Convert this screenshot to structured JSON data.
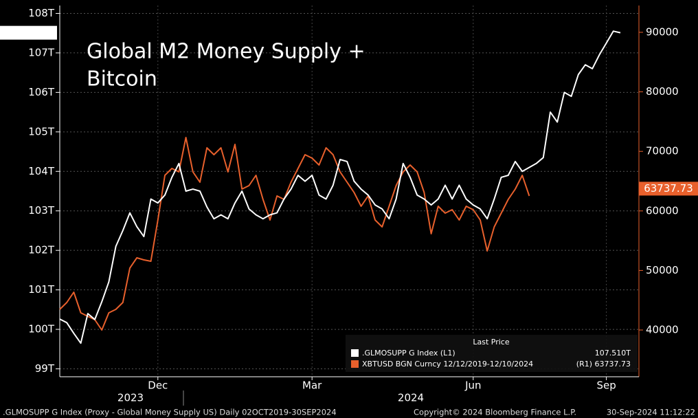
{
  "chart_data": {
    "type": "line",
    "title_parts": [
      {
        "text": "Global M2 Money Supply +",
        "color": "#ffffff"
      },
      {
        "text": "Bitcoin",
        "color": "#e8602c"
      }
    ],
    "categories": [
      null,
      null,
      null,
      null,
      null,
      null,
      null,
      null,
      null,
      null,
      null,
      null,
      null,
      null,
      "Dec",
      null,
      null,
      null,
      null,
      null,
      null,
      null,
      null,
      null,
      null,
      null,
      null,
      null,
      null,
      null,
      null,
      null,
      null,
      null,
      null,
      null,
      "Mar",
      null,
      null,
      null,
      null,
      null,
      null,
      null,
      null,
      null,
      null,
      null,
      null,
      null,
      null,
      null,
      null,
      null,
      null,
      null,
      null,
      null,
      null,
      "Jun",
      null,
      null,
      null,
      null,
      null,
      null,
      null,
      null,
      null,
      null,
      null,
      null,
      null,
      null,
      null,
      null,
      null,
      null,
      "Sep",
      null,
      null
    ],
    "x_group_labels": [
      "2023",
      "2024"
    ],
    "series": [
      {
        "name": ".GLMOSUPP G Index  (L1)",
        "legend_value": "107.510T",
        "color": "#ffffff",
        "axis": "y",
        "values": [
          100.26,
          100.17,
          99.9,
          99.65,
          100.4,
          100.25,
          100.7,
          101.2,
          102.1,
          102.5,
          102.95,
          102.6,
          102.35,
          103.3,
          103.2,
          103.4,
          103.85,
          104.2,
          103.5,
          103.55,
          103.5,
          103.1,
          102.8,
          102.9,
          102.8,
          103.2,
          103.5,
          103.05,
          102.9,
          102.8,
          102.9,
          102.95,
          103.3,
          103.55,
          103.9,
          103.75,
          103.9,
          103.4,
          103.3,
          103.65,
          104.3,
          104.25,
          103.75,
          103.55,
          103.4,
          103.15,
          103.05,
          102.8,
          103.3,
          104.2,
          103.85,
          103.4,
          103.3,
          103.15,
          103.3,
          103.65,
          103.3,
          103.65,
          103.3,
          103.15,
          103.05,
          102.8,
          103.3,
          103.85,
          103.9,
          104.25,
          104.0,
          104.1,
          104.2,
          104.35,
          105.5,
          105.25,
          106.0,
          105.9,
          106.45,
          106.7,
          106.6,
          106.95,
          107.25,
          107.55,
          107.51
        ]
      },
      {
        "name": "XBTUSD BGN Curncy 12/12/2019-12/10/2024",
        "legend_value": "(R1) 63737.73",
        "color": "#e8602c",
        "axis": "y2",
        "values": [
          43460,
          44620,
          46350,
          42890,
          42300,
          41730,
          40000,
          42890,
          43460,
          44620,
          50400,
          52120,
          51780,
          51550,
          58480,
          65980,
          67140,
          66560,
          72330,
          66560,
          64830,
          70600,
          69450,
          70600,
          66560,
          71180,
          63670,
          64250,
          65980,
          61940,
          58480,
          62520,
          61940,
          64830,
          67140,
          69450,
          68870,
          67710,
          70600,
          69450,
          66560,
          64830,
          63090,
          60790,
          62520,
          58480,
          57320,
          60790,
          64250,
          66560,
          67710,
          66560,
          63090,
          56170,
          60790,
          59630,
          60210,
          58480,
          60790,
          60210,
          58480,
          53280,
          57320,
          59630,
          61940,
          63670,
          65980,
          62520,
          null,
          null,
          null,
          null,
          null,
          null,
          null,
          null,
          null,
          null,
          null,
          null,
          null
        ]
      }
    ],
    "legend_title": "Last Price",
    "last_value_tags": [
      {
        "value": 107.51,
        "label": "107.510T",
        "axis": "y",
        "color": "#ffffff"
      },
      {
        "value": 63737.73,
        "label": "63737.73",
        "axis": "y2",
        "color": "#e8602c"
      }
    ],
    "ylim": [
      98.8,
      108.2
    ],
    "yticks": [
      {
        "value": 99,
        "label": "99T"
      },
      {
        "value": 100,
        "label": "100T"
      },
      {
        "value": 101,
        "label": "101T"
      },
      {
        "value": 102,
        "label": "102T"
      },
      {
        "value": 103,
        "label": "103T"
      },
      {
        "value": 104,
        "label": "104T"
      },
      {
        "value": 105,
        "label": "105T"
      },
      {
        "value": 106,
        "label": "106T"
      },
      {
        "value": 107,
        "label": "107T"
      },
      {
        "value": 108,
        "label": "108T"
      }
    ],
    "y2lim": [
      32150,
      94500
    ],
    "y2ticks": [
      40000,
      50000,
      60000,
      70000,
      80000,
      90000
    ],
    "grid": true,
    "footer": [
      ".GLMOSUPP G Index (Proxy - Global Money Supply US)  Daily 02OCT2019-30SEP2024",
      "Copyright© 2024 Bloomberg Finance L.P.",
      "30-Sep-2024 11:12:22"
    ]
  }
}
